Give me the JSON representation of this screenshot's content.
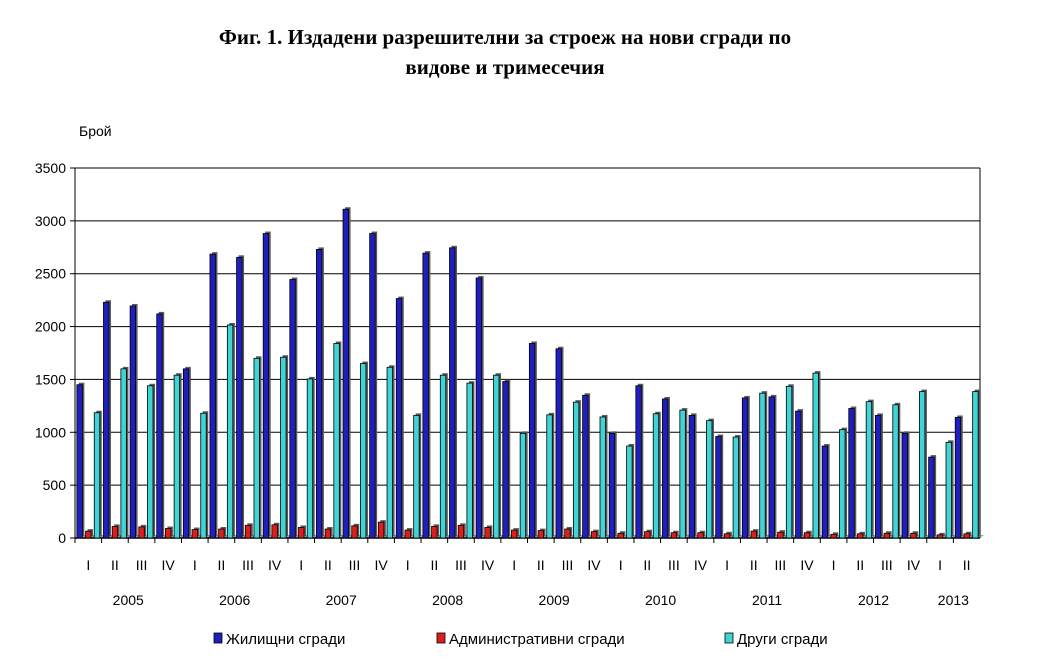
{
  "chart_data": {
    "type": "bar",
    "title_line1": "Фиг. 1. Издадени разрешителни за строеж на нови сгради по",
    "title_line2": "видове и тримесечия",
    "ylabel": "Брой",
    "ylim": [
      0,
      3500
    ],
    "yticks": [
      0,
      500,
      1000,
      1500,
      2000,
      2500,
      3000,
      3500
    ],
    "grid": true,
    "legend_position": "bottom",
    "categories": [
      "I",
      "II",
      "III",
      "IV",
      "I",
      "II",
      "III",
      "IV",
      "I",
      "II",
      "III",
      "IV",
      "I",
      "II",
      "III",
      "IV",
      "I",
      "II",
      "III",
      "IV",
      "I",
      "II",
      "III",
      "IV",
      "I",
      "II",
      "III",
      "IV",
      "I",
      "II",
      "III",
      "IV",
      "I",
      "II"
    ],
    "years": [
      {
        "label": "2005",
        "start": 0,
        "count": 4
      },
      {
        "label": "2006",
        "start": 4,
        "count": 4
      },
      {
        "label": "2007",
        "start": 8,
        "count": 4
      },
      {
        "label": "2008",
        "start": 12,
        "count": 4
      },
      {
        "label": "2009",
        "start": 16,
        "count": 4
      },
      {
        "label": "2010",
        "start": 20,
        "count": 4
      },
      {
        "label": "2011",
        "start": 24,
        "count": 4
      },
      {
        "label": "2012",
        "start": 28,
        "count": 4
      },
      {
        "label": "2013",
        "start": 32,
        "count": 2
      }
    ],
    "series": [
      {
        "name": "Жилищни сгради",
        "color": "#1f1fbf",
        "values": [
          1450,
          2230,
          2195,
          2120,
          1600,
          2685,
          2655,
          2880,
          2445,
          2730,
          3110,
          2880,
          2265,
          2695,
          2745,
          2460,
          1480,
          1840,
          1790,
          1350,
          990,
          1440,
          1315,
          1160,
          960,
          1325,
          1335,
          1200,
          870,
          1225,
          1160,
          990,
          765,
          1140
        ]
      },
      {
        "name": "Административни сгради",
        "color": "#dd1e1e",
        "values": [
          65,
          110,
          105,
          90,
          80,
          85,
          120,
          125,
          100,
          85,
          115,
          150,
          75,
          110,
          120,
          100,
          75,
          70,
          85,
          60,
          45,
          60,
          50,
          50,
          40,
          65,
          55,
          50,
          35,
          40,
          45,
          45,
          30,
          40
        ]
      },
      {
        "name": "Други сгради",
        "color": "#3fd4d6",
        "values": [
          1185,
          1600,
          1440,
          1540,
          1180,
          2015,
          1700,
          1710,
          1505,
          1840,
          1650,
          1615,
          1160,
          1540,
          1465,
          1540,
          990,
          1165,
          1285,
          1145,
          870,
          1175,
          1210,
          1110,
          955,
          1370,
          1435,
          1560,
          1025,
          1290,
          1260,
          1385,
          905,
          1385
        ]
      }
    ]
  }
}
